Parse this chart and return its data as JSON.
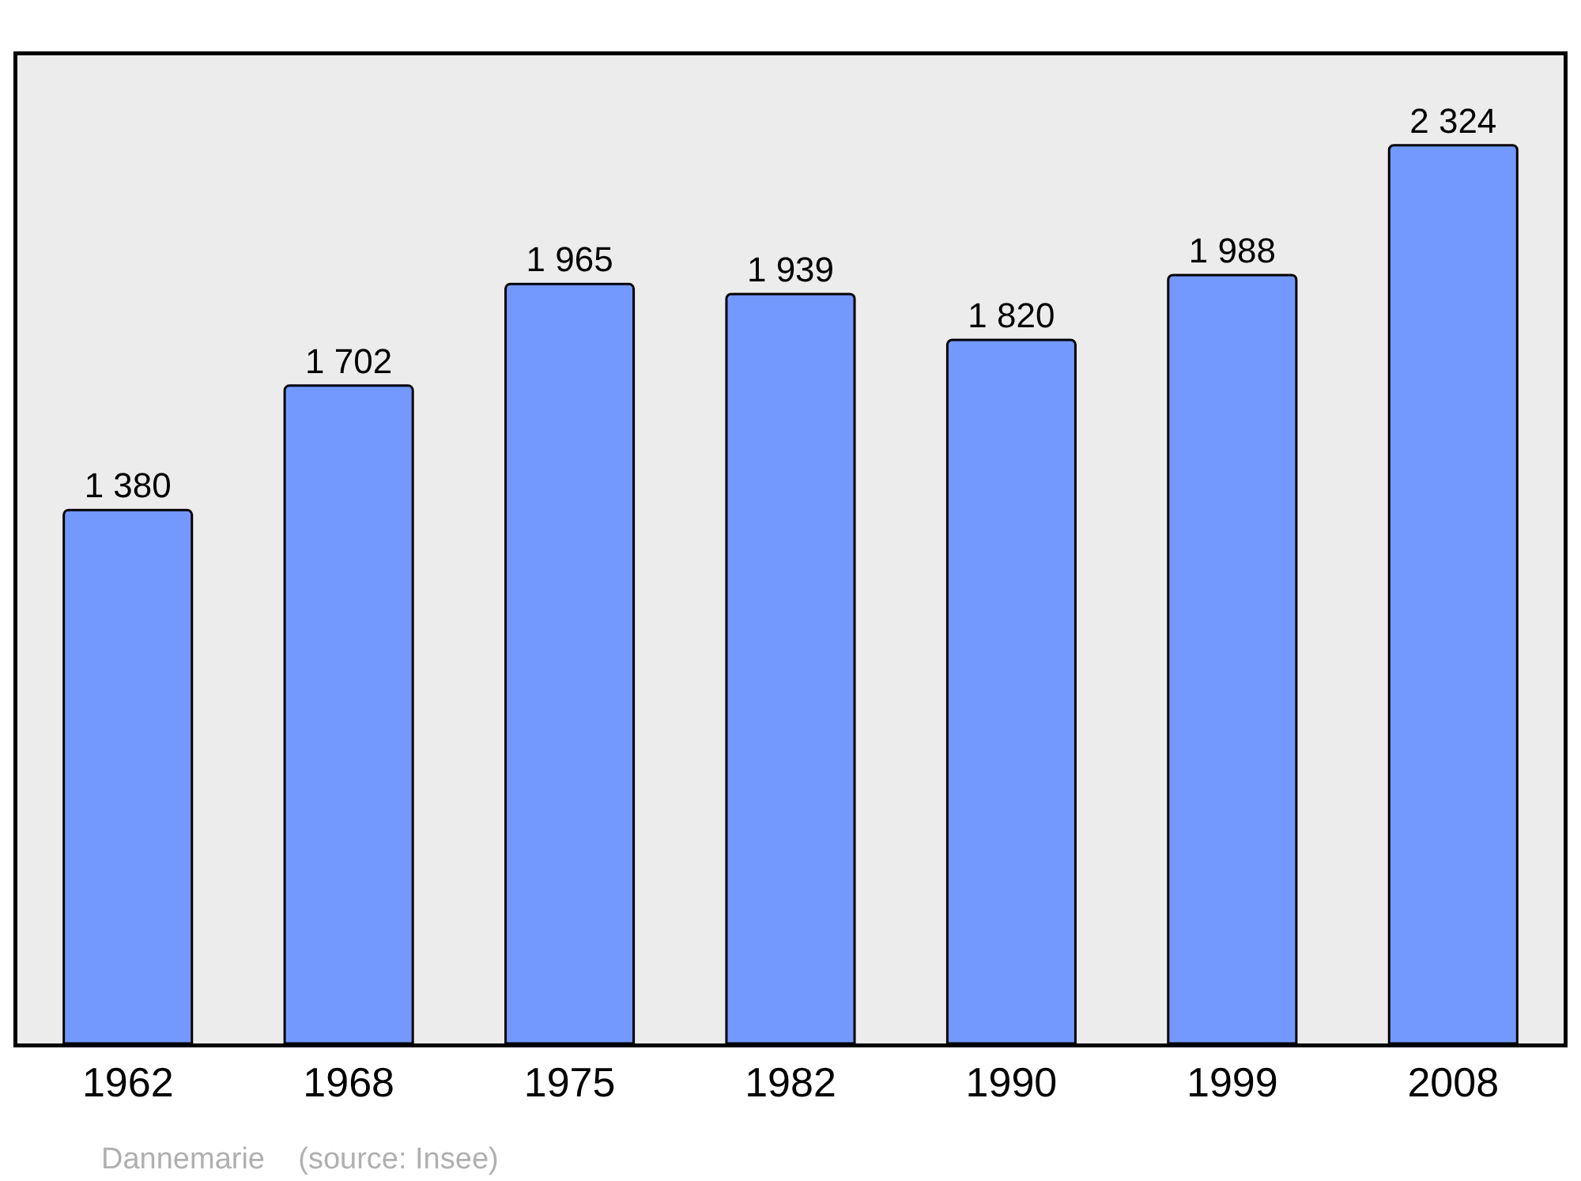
{
  "chart_data": {
    "type": "bar",
    "categories": [
      "1962",
      "1968",
      "1975",
      "1982",
      "1990",
      "1999",
      "2008"
    ],
    "values": [
      1380,
      1702,
      1965,
      1939,
      1820,
      1988,
      2324
    ],
    "value_labels": [
      "1 380",
      "1 702",
      "1 965",
      "1 939",
      "1 820",
      "1 988",
      "2 324"
    ],
    "color": "#7399ff",
    "grid": false,
    "legend": false,
    "annotations": [
      "Dannemarie    (source: Insee)"
    ]
  }
}
